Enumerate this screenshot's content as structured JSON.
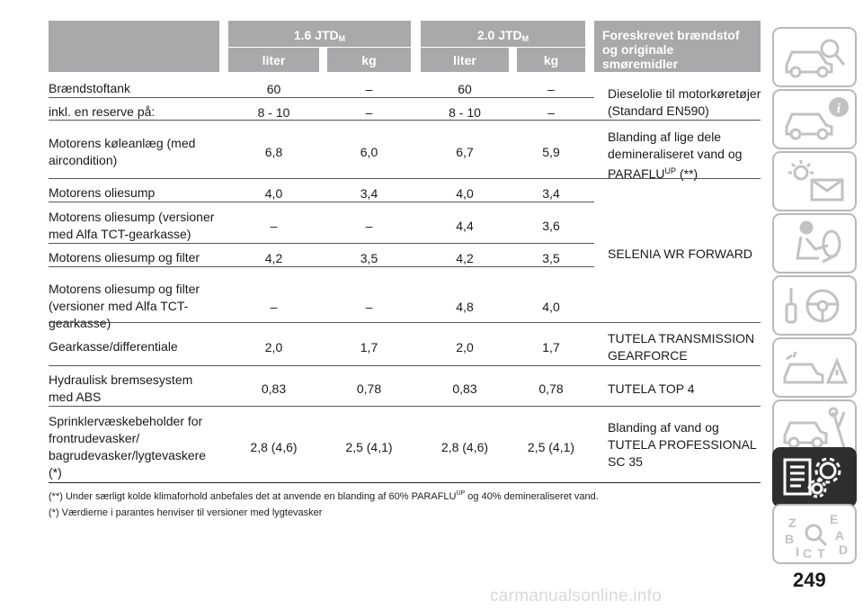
{
  "header": {
    "engine1": "1.6 JTD",
    "engine1_sub": "M",
    "engine2": "2.0 JTD",
    "engine2_sub": "M",
    "col_liter_1": "liter",
    "col_kg_1": "kg",
    "col_liter_2": "liter",
    "col_kg_2": "kg",
    "fuel_col_line1": "Foreskrevet brændstof",
    "fuel_col_line2": "og originale",
    "fuel_col_line3": "smøremidler"
  },
  "rows": [
    {
      "label": [
        "Brændstoftank"
      ],
      "v": [
        "60",
        "–",
        "60",
        "–"
      ]
    },
    {
      "label": [
        "inkl. en reserve på:"
      ],
      "v": [
        "8 - 10",
        "–",
        "8 - 10",
        "–"
      ]
    },
    {
      "label": [
        "Motorens kølеanlæg (med",
        "aircondition)"
      ],
      "v": [
        "6,8",
        "6,0",
        "6,7",
        "5,9"
      ]
    },
    {
      "label": [
        "Motorens oliesump"
      ],
      "v": [
        "4,0",
        "3,4",
        "4,0",
        "3,4"
      ]
    },
    {
      "label": [
        "Motorens oliesump (versioner",
        "med Alfa TCT-gearkasse)"
      ],
      "v": [
        "–",
        "–",
        "4,4",
        "3,6"
      ]
    },
    {
      "label": [
        "Motorens oliesump og filter"
      ],
      "v": [
        "4,2",
        "3,5",
        "4,2",
        "3,5"
      ]
    },
    {
      "label": [
        "Motorens oliesump og filter",
        "(versioner med Alfa TCT-",
        "gearkasse)"
      ],
      "v": [
        "–",
        "–",
        "4,8",
        "4,0"
      ]
    },
    {
      "label": [
        "Gearkasse/differentiale"
      ],
      "v": [
        "2,0",
        "1,7",
        "2,0",
        "1,7"
      ]
    },
    {
      "label": [
        "Hydraulisk bremsesystem",
        "med ABS"
      ],
      "v": [
        "0,83",
        "0,78",
        "0,83",
        "0,78"
      ]
    },
    {
      "label": [
        "Sprinklervæskebeholder for",
        "frontrudevasker/",
        "bagrudevasker/lygtevaskere",
        "(*)"
      ],
      "v": [
        "2,8 (4,6)",
        "2,5 (4,1)",
        "2,8 (4,6)",
        "2,5 (4,1)"
      ]
    }
  ],
  "fluids": {
    "diesel_line1": "Dieselolie til motorkøretøjer",
    "diesel_line2": "(Standard EN590)",
    "coolant_line1": "Blanding af lige dele",
    "coolant_line2": "demineraliseret vand og",
    "coolant_line3a": "PARAFLU",
    "coolant_line3_sup": "UP",
    "coolant_line3b": " (**)",
    "oil": "SELENIA WR FORWARD",
    "gear_line1": "TUTELA TRANSMISSION",
    "gear_line2": "GEARFORCE",
    "brake": "TUTELA TOP 4",
    "washer_line1": "Blanding af vand og",
    "washer_line2": "TUTELA PROFESSIONAL",
    "washer_line3": "SC 35"
  },
  "footnotes": {
    "note1a": "(**) Under særligt kolde klimaforhold anbefales det at anvende en blanding af 60% PARAFLU",
    "note1_sup": "UP",
    "note1b": "og 40% demineraliseret vand.",
    "note2": "(*) Værdierne i parantes henviser til versioner med lygtevasker"
  },
  "page_number": "249",
  "watermark": "carmanualsonline.info",
  "sidebar_tabs": [
    {
      "name": "car-search-icon",
      "active": false
    },
    {
      "name": "car-info-icon",
      "active": false
    },
    {
      "name": "warning-lights-icon",
      "active": false
    },
    {
      "name": "airbag-seat-icon",
      "active": false
    },
    {
      "name": "key-steering-icon",
      "active": false
    },
    {
      "name": "breakdown-icon",
      "active": false
    },
    {
      "name": "car-maintenance-icon",
      "active": false
    },
    {
      "name": "technical-data-icon",
      "active": true
    },
    {
      "name": "index-icon",
      "active": false
    }
  ],
  "colors": {
    "header_bg": "#a9a9ab",
    "active_tab": "#2e2e2e",
    "tab_border": "#b9b9ba"
  }
}
